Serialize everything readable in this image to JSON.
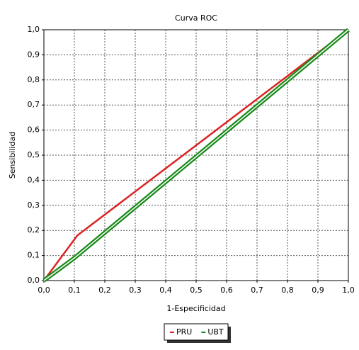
{
  "chart_data": {
    "type": "line",
    "title": "Curva ROC",
    "x_label": "1-Especificidad",
    "y_label": "Sensibilidad",
    "xlim": [
      0,
      1
    ],
    "ylim": [
      0,
      1
    ],
    "xticks": [
      {
        "value": 0,
        "label": "0,0"
      },
      {
        "value": 0.1,
        "label": "0,1"
      },
      {
        "value": 0.2,
        "label": "0,2"
      },
      {
        "value": 0.3,
        "label": "0,3"
      },
      {
        "value": 0.4,
        "label": "0,4"
      },
      {
        "value": 0.5,
        "label": "0,5"
      },
      {
        "value": 0.6,
        "label": "0,6"
      },
      {
        "value": 0.7,
        "label": "0,7"
      },
      {
        "value": 0.8,
        "label": "0,8"
      },
      {
        "value": 0.9,
        "label": "0,9"
      },
      {
        "value": 1,
        "label": "1,0"
      }
    ],
    "yticks": [
      {
        "value": 0,
        "label": "0,0"
      },
      {
        "value": 0.1,
        "label": "0,1"
      },
      {
        "value": 0.2,
        "label": "0,2"
      },
      {
        "value": 0.3,
        "label": "0,3"
      },
      {
        "value": 0.4,
        "label": "0,4"
      },
      {
        "value": 0.5,
        "label": "0,5"
      },
      {
        "value": 0.6,
        "label": "0,6"
      },
      {
        "value": 0.7,
        "label": "0,7"
      },
      {
        "value": 0.8,
        "label": "0,8"
      },
      {
        "value": 0.9,
        "label": "0,9"
      },
      {
        "value": 1,
        "label": "1,0"
      }
    ],
    "grid": true,
    "series": [
      {
        "name": "PRU",
        "color": "#dd2222",
        "x": [
          0,
          0.11,
          1
        ],
        "values": [
          0,
          0.18,
          1
        ]
      },
      {
        "name": "UBT",
        "color": "#1a8a1a",
        "x": [
          0,
          0.1,
          1
        ],
        "values": [
          0,
          0.09,
          1
        ]
      }
    ]
  }
}
